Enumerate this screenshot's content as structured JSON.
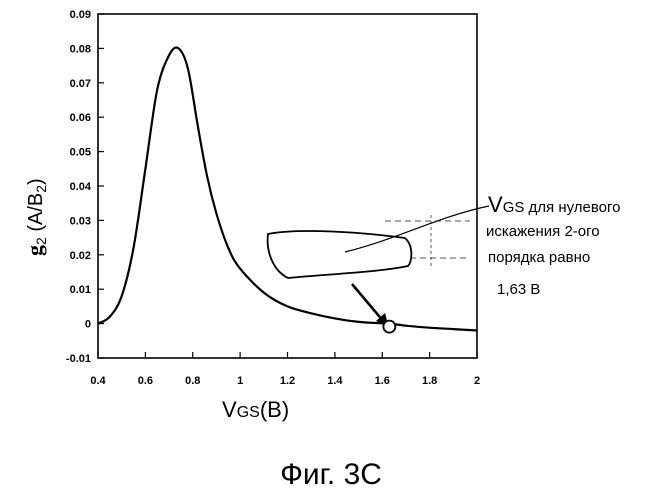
{
  "chart_data": {
    "type": "line",
    "title": "",
    "xlabel_main": "V",
    "xlabel_sub": "GS",
    "xlabel_unit": "(B)",
    "ylabel_main": "g",
    "ylabel_sub": "2",
    "ylabel_unit_open": " (A/B",
    "ylabel_unit_sub": "2",
    "ylabel_unit_close": ")",
    "xlim": [
      0.4,
      2.0
    ],
    "ylim": [
      -0.01,
      0.09
    ],
    "grid": false,
    "x_ticks": [
      "0.4",
      "0.6",
      "0.8",
      "1",
      "1.2",
      "1.4",
      "1.6",
      "1.8",
      "2"
    ],
    "y_ticks": [
      "0.09",
      "0.08",
      "0.07",
      "0.06",
      "0.05",
      "0.04",
      "0.03",
      "0.02",
      "0.01",
      "0",
      "-0.01"
    ],
    "series": [
      {
        "x": [
          0.4,
          0.45,
          0.5,
          0.55,
          0.6,
          0.65,
          0.7,
          0.74,
          0.78,
          0.82,
          0.86,
          0.9,
          0.95,
          1.0,
          1.1,
          1.2,
          1.3,
          1.4,
          1.5,
          1.6,
          1.63,
          1.7,
          1.8,
          1.9,
          2.0
        ],
        "y": [
          0.0,
          0.002,
          0.008,
          0.022,
          0.045,
          0.068,
          0.078,
          0.08,
          0.074,
          0.058,
          0.043,
          0.032,
          0.022,
          0.016,
          0.009,
          0.005,
          0.003,
          0.0015,
          0.0005,
          0.0001,
          0.0,
          -0.0006,
          -0.0012,
          -0.0016,
          -0.002
        ]
      }
    ],
    "marker": {
      "x": 1.63,
      "y": 0.0
    }
  },
  "annotation": {
    "line1_main": "V",
    "line1_sub": "GS",
    "line1_rest": " для нулевого",
    "line2": "искажения 2-ого",
    "line3": "порядка равно",
    "line4": "1,63 В"
  },
  "caption": "Фиг. 3С"
}
